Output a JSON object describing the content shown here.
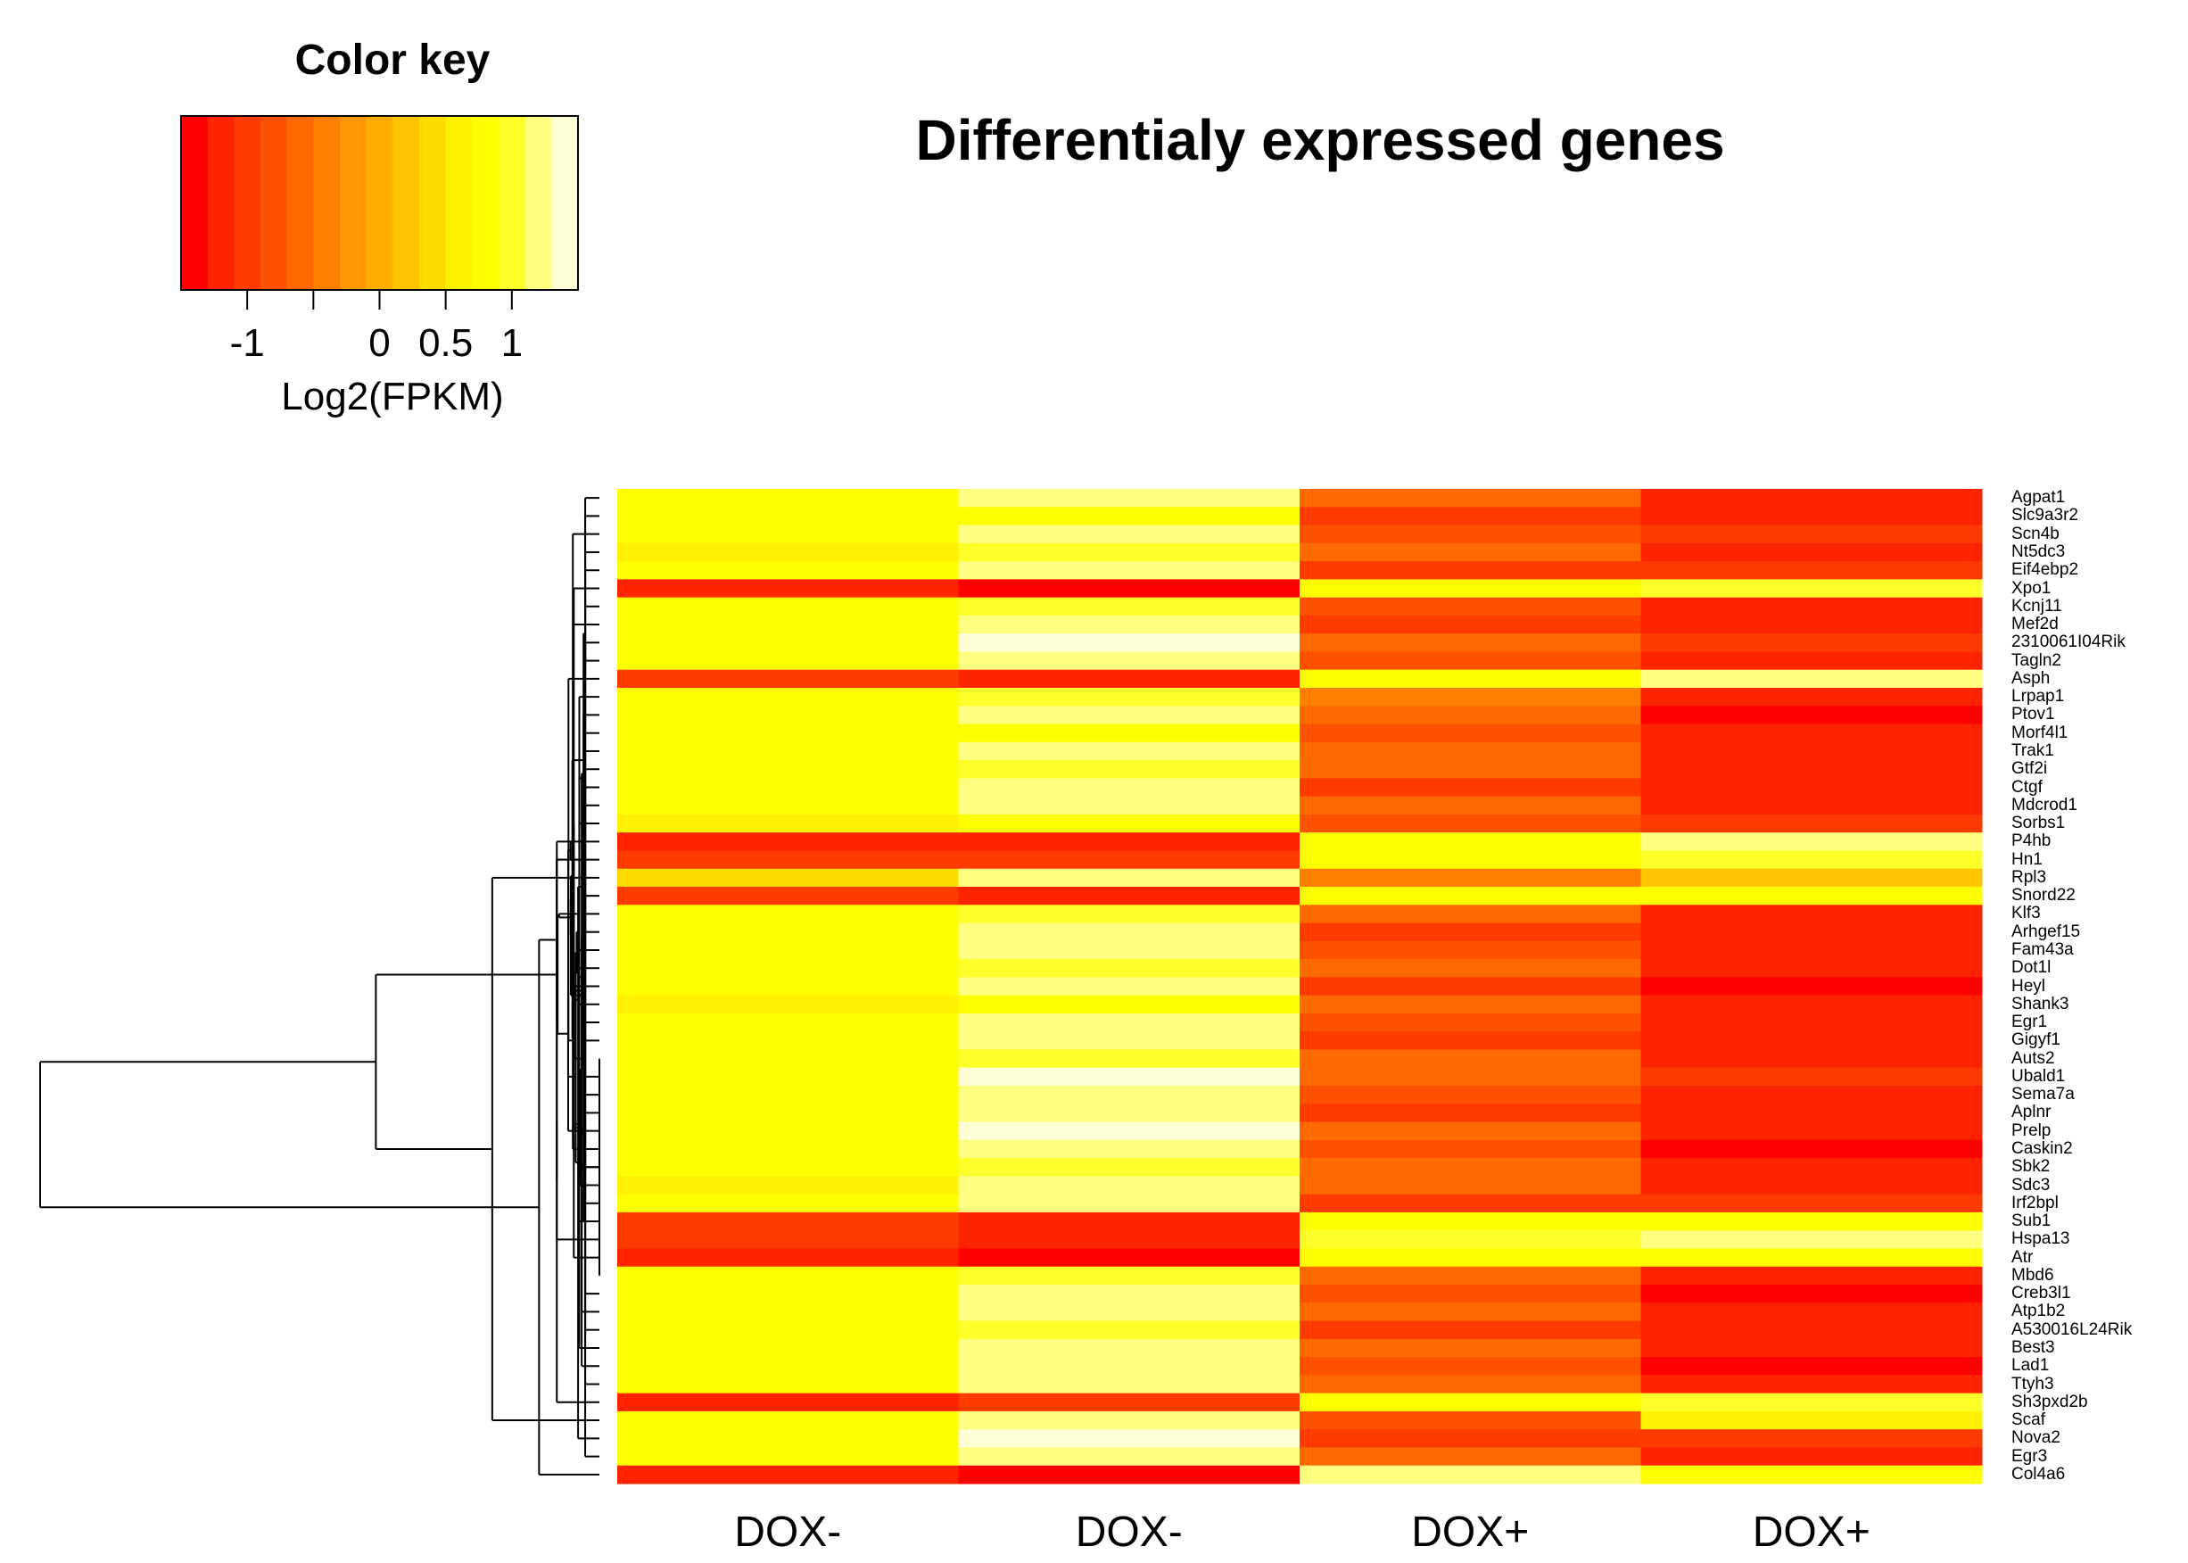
{
  "chart_data": {
    "type": "heatmap",
    "title": "Differentialy expressed genes",
    "color_key": {
      "title": "Color key",
      "xlabel": "Log2(FPKM)",
      "ticks": [
        "-1",
        "0",
        "0.5",
        "1"
      ],
      "tick_values": [
        -1,
        0,
        0.5,
        1
      ],
      "range": [
        -1.5,
        1.5
      ],
      "colors": [
        "#ff0000",
        "#ff2400",
        "#ff3b00",
        "#ff5200",
        "#ff6a00",
        "#ff8000",
        "#ff9700",
        "#ffae00",
        "#ffc400",
        "#ffdc00",
        "#fff200",
        "#ffff00",
        "#ffff2a",
        "#ffff80",
        "#ffffd5"
      ]
    },
    "columns": [
      "DOX-",
      "DOX-",
      "DOX+",
      "DOX+"
    ],
    "genes": [
      "Agpat1",
      "Slc9a3r2",
      "Scn4b",
      "Nt5dc3",
      "Eif4ebp2",
      "Xpo1",
      "Kcnj11",
      "Mef2d",
      "2310061I04Rik",
      "Tagln2",
      "Asph",
      "Lrpap1",
      "Ptov1",
      "Morf4l1",
      "Trak1",
      "Gtf2i",
      "Ctgf",
      "Mdcrod1",
      "Sorbs1",
      "P4hb",
      "Hn1",
      "Rpl3",
      "Snord22",
      "Klf3",
      "Arhgef15",
      "Fam43a",
      "Dot1l",
      "Heyl",
      "Shank3",
      "Egr1",
      "Gigyf1",
      "Auts2",
      "Ubald1",
      "Sema7a",
      "Aplnr",
      "Prelp",
      "Caskin2",
      "Sbk2",
      "Sdc3",
      "Irf2bpl",
      "Sub1",
      "Hspa13",
      "Atr",
      "Mbd6",
      "Creb3l1",
      "Atp1b2",
      "A530016L24Rik",
      "Best3",
      "Lad1",
      "Ttyh3",
      "Sh3pxd2b",
      "Scaf",
      "Nova2",
      "Egr3",
      "Col4a6"
    ],
    "values": [
      [
        0.8,
        1.1,
        -0.7,
        -1.1
      ],
      [
        0.7,
        0.9,
        -0.9,
        -1.2
      ],
      [
        0.9,
        1.2,
        -0.8,
        -1.0
      ],
      [
        0.6,
        1.0,
        -0.6,
        -1.1
      ],
      [
        0.8,
        1.3,
        -0.9,
        -0.9
      ],
      [
        -1.1,
        -1.3,
        0.9,
        1.0
      ],
      [
        0.7,
        1.0,
        -0.8,
        -1.2
      ],
      [
        0.8,
        1.2,
        -0.9,
        -1.1
      ],
      [
        0.9,
        1.4,
        -0.7,
        -1.0
      ],
      [
        0.7,
        1.1,
        -0.8,
        -1.2
      ],
      [
        -1.0,
        -1.2,
        0.8,
        1.1
      ],
      [
        0.8,
        1.0,
        -0.5,
        -1.2
      ],
      [
        0.9,
        1.1,
        -0.7,
        -1.3
      ],
      [
        0.7,
        0.9,
        -0.8,
        -1.2
      ],
      [
        0.8,
        1.2,
        -0.6,
        -1.1
      ],
      [
        0.9,
        1.0,
        -0.7,
        -1.2
      ],
      [
        0.7,
        1.3,
        -0.9,
        -1.1
      ],
      [
        0.8,
        1.1,
        -0.6,
        -1.2
      ],
      [
        0.6,
        0.9,
        -0.8,
        -1.0
      ],
      [
        -1.2,
        -1.1,
        0.9,
        1.2
      ],
      [
        -0.9,
        -1.0,
        0.7,
        1.0
      ],
      [
        0.3,
        1.3,
        -0.4,
        0.2
      ],
      [
        -1.0,
        -1.2,
        0.8,
        0.9
      ],
      [
        0.7,
        1.0,
        -0.7,
        -1.2
      ],
      [
        0.8,
        1.1,
        -0.9,
        -1.1
      ],
      [
        0.9,
        1.3,
        -0.8,
        -1.2
      ],
      [
        0.7,
        1.0,
        -0.6,
        -1.1
      ],
      [
        0.8,
        1.2,
        -0.9,
        -1.3
      ],
      [
        0.6,
        0.9,
        -0.7,
        -1.1
      ],
      [
        0.9,
        1.1,
        -0.8,
        -1.2
      ],
      [
        0.7,
        1.2,
        -0.9,
        -1.1
      ],
      [
        0.8,
        1.0,
        -0.7,
        -1.2
      ],
      [
        0.9,
        1.4,
        -0.6,
        -1.0
      ],
      [
        0.7,
        1.3,
        -0.8,
        -1.1
      ],
      [
        0.8,
        1.1,
        -0.9,
        -1.2
      ],
      [
        0.7,
        1.4,
        -0.7,
        -1.1
      ],
      [
        0.9,
        1.2,
        -0.8,
        -1.3
      ],
      [
        0.8,
        1.0,
        -0.6,
        -1.1
      ],
      [
        0.6,
        1.1,
        -0.7,
        -1.2
      ],
      [
        0.8,
        1.3,
        -0.9,
        -1.0
      ],
      [
        -1.0,
        -1.2,
        0.9,
        0.9
      ],
      [
        -0.9,
        -1.1,
        1.0,
        1.1
      ],
      [
        -1.1,
        -1.3,
        0.8,
        0.8
      ],
      [
        0.8,
        1.0,
        -0.7,
        -1.2
      ],
      [
        0.9,
        1.1,
        -0.8,
        -1.3
      ],
      [
        0.7,
        1.2,
        -0.6,
        -1.1
      ],
      [
        0.8,
        1.0,
        -0.9,
        -1.2
      ],
      [
        0.9,
        1.3,
        -0.7,
        -1.1
      ],
      [
        0.7,
        1.1,
        -0.8,
        -1.3
      ],
      [
        0.8,
        1.2,
        -0.6,
        -1.2
      ],
      [
        -1.1,
        -0.9,
        0.9,
        1.0
      ],
      [
        0.8,
        1.3,
        -0.8,
        0.6
      ],
      [
        0.7,
        1.4,
        -0.9,
        -1.0
      ],
      [
        0.9,
        1.1,
        -0.7,
        -1.1
      ],
      [
        -1.2,
        -1.3,
        1.2,
        0.9
      ]
    ]
  }
}
